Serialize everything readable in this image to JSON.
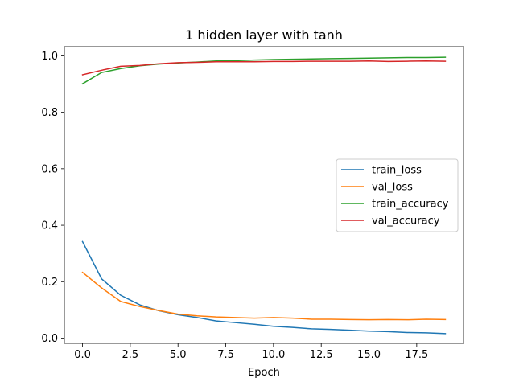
{
  "chart_data": {
    "type": "line",
    "title": "1 hidden layer with tanh",
    "xlabel": "Epoch",
    "ylabel": "",
    "xlim": [
      -0.95,
      19.95
    ],
    "ylim": [
      -0.0185,
      1.0325
    ],
    "xticks": [
      0.0,
      2.5,
      5.0,
      7.5,
      10.0,
      12.5,
      15.0,
      17.5
    ],
    "xtick_labels": [
      "0.0",
      "2.5",
      "5.0",
      "7.5",
      "10.0",
      "12.5",
      "15.0",
      "17.5"
    ],
    "yticks": [
      0.0,
      0.2,
      0.4,
      0.6,
      0.8,
      1.0
    ],
    "ytick_labels": [
      "0.0",
      "0.2",
      "0.4",
      "0.6",
      "0.8",
      "1.0"
    ],
    "grid": false,
    "legend_position": "center-right",
    "x": [
      0,
      1,
      2,
      3,
      4,
      5,
      6,
      7,
      8,
      9,
      10,
      11,
      12,
      13,
      14,
      15,
      16,
      17,
      18,
      19
    ],
    "series": [
      {
        "name": "train_loss",
        "color": "#1f77b4",
        "values": [
          0.342,
          0.21,
          0.152,
          0.118,
          0.097,
          0.083,
          0.073,
          0.061,
          0.055,
          0.049,
          0.042,
          0.038,
          0.033,
          0.031,
          0.028,
          0.025,
          0.023,
          0.02,
          0.019,
          0.016
        ]
      },
      {
        "name": "val_loss",
        "color": "#ff7f0e",
        "values": [
          0.233,
          0.178,
          0.13,
          0.112,
          0.098,
          0.085,
          0.079,
          0.075,
          0.073,
          0.071,
          0.073,
          0.071,
          0.067,
          0.067,
          0.066,
          0.065,
          0.066,
          0.065,
          0.067,
          0.066
        ]
      },
      {
        "name": "train_accuracy",
        "color": "#2ca02c",
        "values": [
          0.901,
          0.941,
          0.955,
          0.965,
          0.971,
          0.975,
          0.978,
          0.982,
          0.983,
          0.985,
          0.987,
          0.988,
          0.989,
          0.99,
          0.991,
          0.992,
          0.993,
          0.994,
          0.994,
          0.995
        ]
      },
      {
        "name": "val_accuracy",
        "color": "#d62728",
        "values": [
          0.933,
          0.949,
          0.963,
          0.966,
          0.972,
          0.976,
          0.977,
          0.979,
          0.979,
          0.979,
          0.98,
          0.98,
          0.981,
          0.981,
          0.981,
          0.982,
          0.98,
          0.981,
          0.982,
          0.981
        ]
      }
    ]
  }
}
